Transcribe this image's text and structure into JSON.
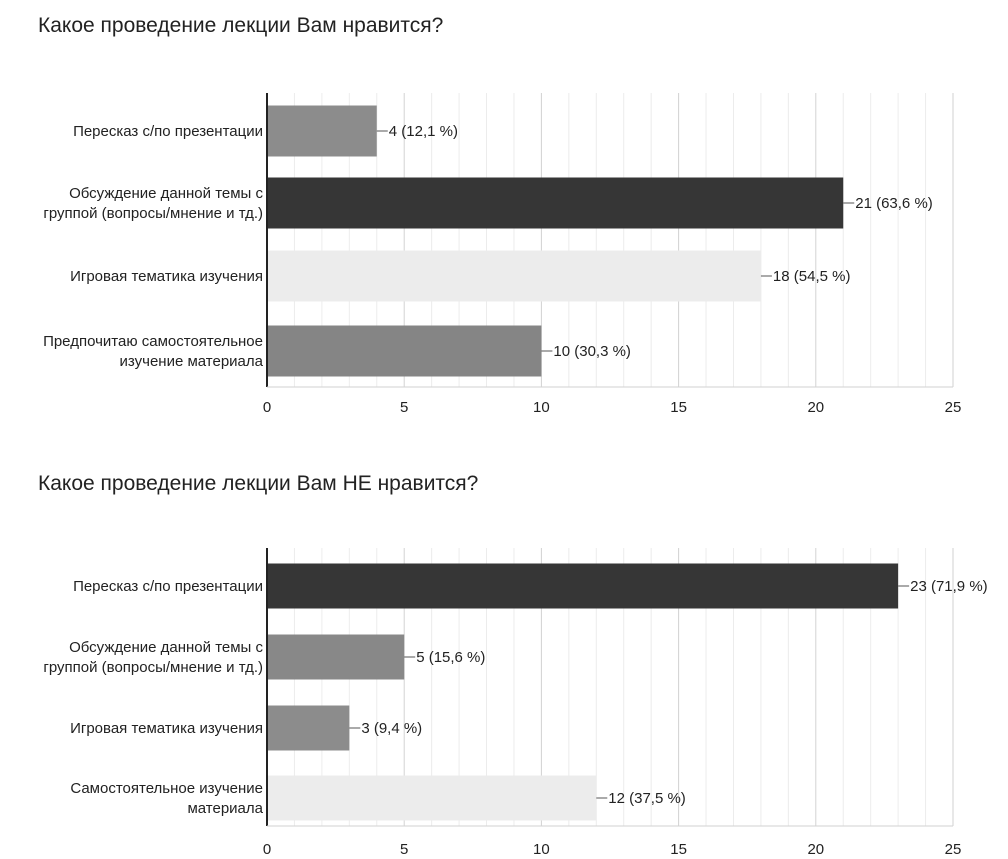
{
  "chart_data": [
    {
      "type": "bar",
      "orientation": "horizontal",
      "title": "Какое проведение лекции Вам нравится?",
      "categories": [
        "Пересказ с/по презентации",
        "Обсуждение данной темы с группой (вопросы/мнение и тд.)",
        "Игровая тематика изучения",
        "Предпочитаю самостоятельное изучение материала"
      ],
      "category_lines": [
        [
          "Пересказ с/по презентации"
        ],
        [
          "Обсуждение данной темы с",
          "группой (вопросы/мнение и тд.)"
        ],
        [
          "Игровая тематика изучения"
        ],
        [
          "Предпочитаю самостоятельное",
          "изучение материала"
        ]
      ],
      "values": [
        4,
        21,
        18,
        10
      ],
      "data_labels": [
        "4 (12,1 %)",
        "21 (63,6 %)",
        "18 (54,5 %)",
        "10 (30,3 %)"
      ],
      "bar_colors": [
        "#8c8c8c",
        "#363636",
        "#ececec",
        "#858585"
      ],
      "xlim": [
        0,
        25
      ],
      "xticks": [
        0,
        5,
        10,
        15,
        20,
        25
      ],
      "grid": true,
      "xlabel": "",
      "ylabel": ""
    },
    {
      "type": "bar",
      "orientation": "horizontal",
      "title": "Какое проведение лекции Вам НЕ нравится?",
      "categories": [
        "Пересказ с/по презентации",
        "Обсуждение данной темы с группой (вопросы/мнение и тд.)",
        "Игровая тематика изучения",
        "Самостоятельное изучение материала"
      ],
      "category_lines": [
        [
          "Пересказ с/по презентации"
        ],
        [
          "Обсуждение данной темы с",
          "группой (вопросы/мнение и тд.)"
        ],
        [
          "Игровая тематика изучения"
        ],
        [
          "Самостоятельное изучение",
          "материала"
        ]
      ],
      "values": [
        23,
        5,
        3,
        12
      ],
      "data_labels": [
        "23 (71,9 %)",
        "5 (15,6 %)",
        "3 (9,4 %)",
        "12 (37,5 %)"
      ],
      "bar_colors": [
        "#363636",
        "#888888",
        "#8c8c8c",
        "#ececec"
      ],
      "xlim": [
        0,
        25
      ],
      "xticks": [
        0,
        5,
        10,
        15,
        20,
        25
      ],
      "grid": true,
      "xlabel": "",
      "ylabel": ""
    }
  ]
}
